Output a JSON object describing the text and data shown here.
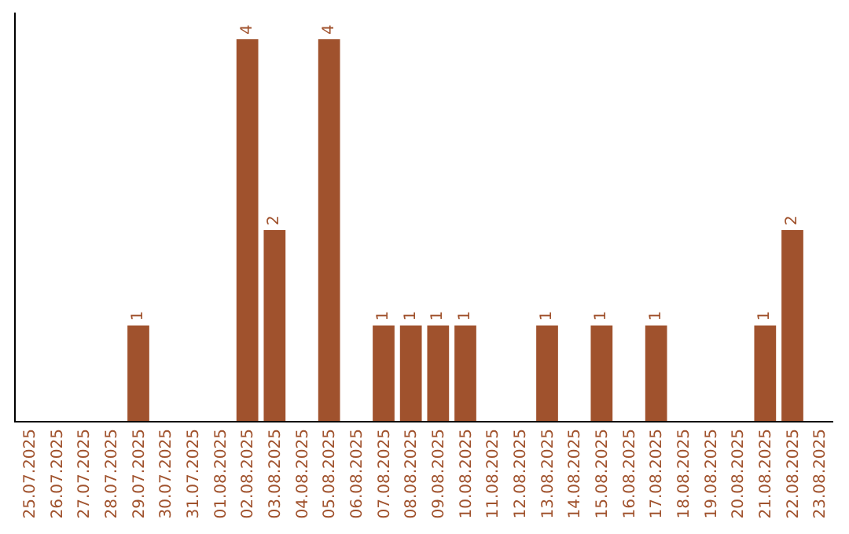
{
  "chart_data": {
    "type": "bar",
    "categories": [
      "25.07.2025",
      "26.07.2025",
      "27.07.2025",
      "28.07.2025",
      "29.07.2025",
      "30.07.2025",
      "31.07.2025",
      "01.08.2025",
      "02.08.2025",
      "03.08.2025",
      "04.08.2025",
      "05.08.2025",
      "06.08.2025",
      "07.08.2025",
      "08.08.2025",
      "09.08.2025",
      "10.08.2025",
      "11.08.2025",
      "12.08.2025",
      "13.08.2025",
      "14.08.2025",
      "15.08.2025",
      "16.08.2025",
      "17.08.2025",
      "18.08.2025",
      "19.08.2025",
      "20.08.2025",
      "21.08.2025",
      "22.08.2025",
      "23.08.2025"
    ],
    "values": [
      0,
      0,
      0,
      0,
      1,
      0,
      0,
      0,
      4,
      2,
      0,
      4,
      0,
      1,
      1,
      1,
      1,
      0,
      0,
      1,
      0,
      1,
      0,
      1,
      0,
      0,
      0,
      1,
      2,
      0
    ],
    "value_labels": [
      null,
      null,
      null,
      null,
      "1",
      null,
      null,
      null,
      "4",
      "2",
      null,
      "4",
      null,
      "1",
      "1",
      "1",
      "1",
      null,
      null,
      "1",
      null,
      "1",
      null,
      "1",
      null,
      null,
      null,
      "1",
      "2",
      null
    ],
    "color": "#a0522d",
    "grid": false,
    "legend": false
  }
}
